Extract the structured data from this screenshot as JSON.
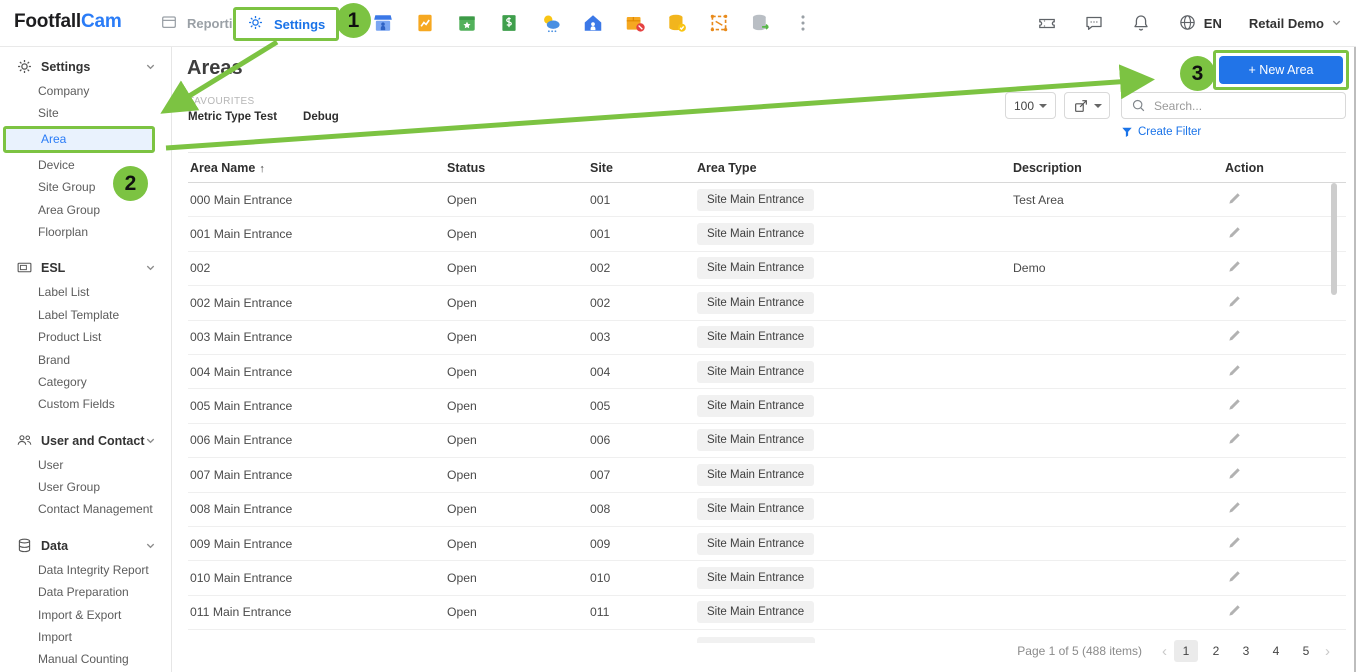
{
  "topbar": {
    "logo": {
      "text_black": "Footfall",
      "text_blue": "Cam"
    },
    "nav": {
      "reporting": "Reporting",
      "settings": "Settings"
    },
    "app_icons": [
      "store-icon",
      "report-icon",
      "calendar-star-icon",
      "sales-receipt-icon",
      "weather-icon",
      "home-icon",
      "package-alert-icon",
      "database-check-icon",
      "floorplan-icon",
      "database-sync-icon",
      "more-apps-icon"
    ],
    "right_icons": [
      "ticket-icon",
      "comment-icon",
      "bell-icon"
    ],
    "language": "EN",
    "account": "Retail Demo"
  },
  "sidebar": {
    "sections": [
      {
        "icon": "gear-icon",
        "label": "Settings",
        "items": [
          {
            "label": "Company"
          },
          {
            "label": "Site"
          },
          {
            "label": "Area",
            "selected": true
          },
          {
            "label": "Device"
          },
          {
            "label": "Site Group"
          },
          {
            "label": "Area Group"
          },
          {
            "label": "Floorplan"
          }
        ]
      },
      {
        "icon": "esl-tag-icon",
        "label": "ESL",
        "items": [
          {
            "label": "Label List"
          },
          {
            "label": "Label Template"
          },
          {
            "label": "Product List"
          },
          {
            "label": "Brand"
          },
          {
            "label": "Category"
          },
          {
            "label": "Custom Fields"
          }
        ]
      },
      {
        "icon": "users-icon",
        "label": "User and Contact",
        "items": [
          {
            "label": "User"
          },
          {
            "label": "User Group"
          },
          {
            "label": "Contact Management"
          }
        ]
      },
      {
        "icon": "database-icon",
        "label": "Data",
        "items": [
          {
            "label": "Data Integrity Report"
          },
          {
            "label": "Data Preparation"
          },
          {
            "label": "Import & Export"
          },
          {
            "label": "Import"
          },
          {
            "label": "Manual Counting"
          }
        ]
      }
    ]
  },
  "main": {
    "title": "Areas",
    "favourites_label": "FAVOURITES",
    "favourites": [
      "Metric Type Test",
      "Debug"
    ],
    "controls": {
      "page_size": "100",
      "search_placeholder": "Search...",
      "create_filter_label": "Create Filter",
      "new_area_label": "+ New Area"
    },
    "table": {
      "columns": [
        "Area Name",
        "Status",
        "Site",
        "Area Type",
        "Description",
        "Action"
      ],
      "sorted_column": "Area Name",
      "rows": [
        {
          "name": "000 Main Entrance",
          "status": "Open",
          "site": "001",
          "area_type": "Site Main Entrance",
          "description": "Test Area"
        },
        {
          "name": "001 Main Entrance",
          "status": "Open",
          "site": "001",
          "area_type": "Site Main Entrance",
          "description": ""
        },
        {
          "name": "002",
          "status": "Open",
          "site": "002",
          "area_type": "Site Main Entrance",
          "description": "Demo"
        },
        {
          "name": "002 Main Entrance",
          "status": "Open",
          "site": "002",
          "area_type": "Site Main Entrance",
          "description": ""
        },
        {
          "name": "003 Main Entrance",
          "status": "Open",
          "site": "003",
          "area_type": "Site Main Entrance",
          "description": ""
        },
        {
          "name": "004 Main Entrance",
          "status": "Open",
          "site": "004",
          "area_type": "Site Main Entrance",
          "description": ""
        },
        {
          "name": "005 Main Entrance",
          "status": "Open",
          "site": "005",
          "area_type": "Site Main Entrance",
          "description": ""
        },
        {
          "name": "006 Main Entrance",
          "status": "Open",
          "site": "006",
          "area_type": "Site Main Entrance",
          "description": ""
        },
        {
          "name": "007 Main Entrance",
          "status": "Open",
          "site": "007",
          "area_type": "Site Main Entrance",
          "description": ""
        },
        {
          "name": "008 Main Entrance",
          "status": "Open",
          "site": "008",
          "area_type": "Site Main Entrance",
          "description": ""
        },
        {
          "name": "009 Main Entrance",
          "status": "Open",
          "site": "009",
          "area_type": "Site Main Entrance",
          "description": ""
        },
        {
          "name": "010 Main Entrance",
          "status": "Open",
          "site": "010",
          "area_type": "Site Main Entrance",
          "description": ""
        },
        {
          "name": "011 Main Entrance",
          "status": "Open",
          "site": "011",
          "area_type": "Site Main Entrance",
          "description": ""
        }
      ]
    },
    "pagination": {
      "summary": "Page 1 of 5 (488 items)",
      "pages": [
        "1",
        "2",
        "3",
        "4",
        "5"
      ],
      "active_page": "1"
    }
  },
  "annotations": {
    "step1": "1",
    "step2": "2",
    "step3": "3"
  },
  "colors": {
    "annotation_green": "#7cc342",
    "primary_blue": "#1a73e8",
    "selected_item_bg": "#e9f2fd",
    "badge_bg": "#f1f1f1"
  }
}
